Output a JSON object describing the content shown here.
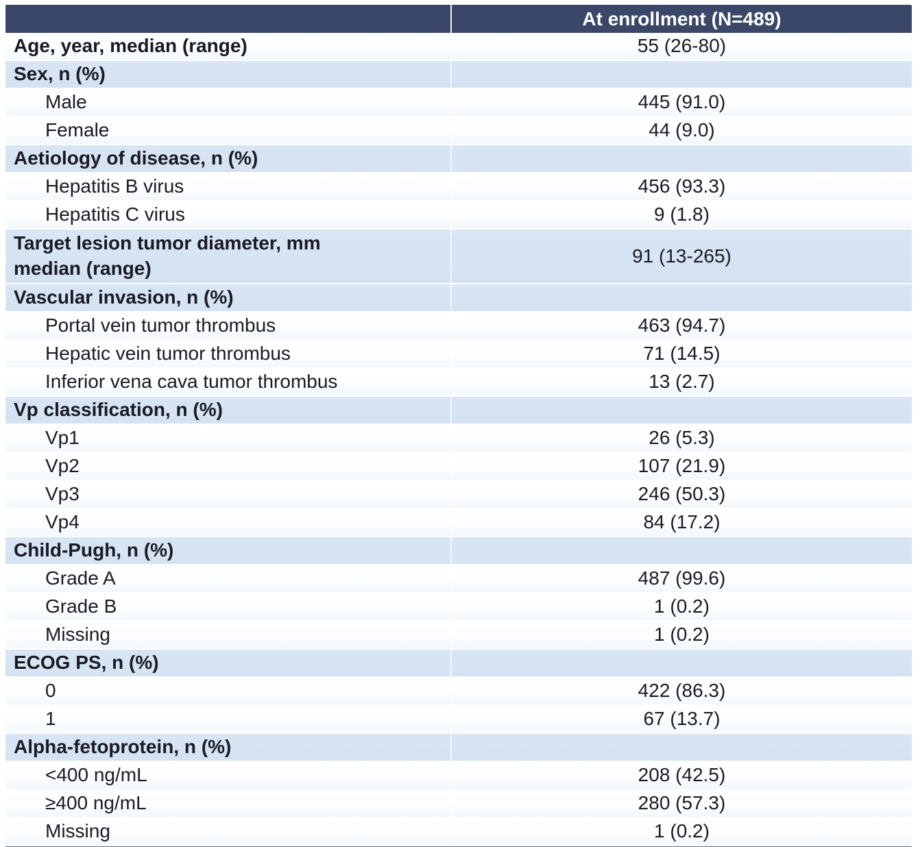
{
  "table": {
    "title_note": "Baseline characteristics table",
    "header": {
      "col1": "",
      "col2": "At enrollment (N=489)"
    },
    "colors": {
      "header_bg": "#3a4768",
      "header_text": "#ffffff",
      "band_blue": "#d7e5f4",
      "text": "#1a1a22",
      "bottom_line": "#666d7c"
    },
    "rows": [
      {
        "label": "Age, year, median (range)",
        "value": "55 (26-80)",
        "bold": true,
        "indent": false,
        "bg": "white",
        "tall": false
      },
      {
        "label": "Sex, n (%)",
        "value": "",
        "bold": true,
        "indent": false,
        "bg": "blue",
        "tall": false
      },
      {
        "label": "Male",
        "value": "445 (91.0)",
        "bold": false,
        "indent": true,
        "bg": "white",
        "tall": false
      },
      {
        "label": "Female",
        "value": "44 (9.0)",
        "bold": false,
        "indent": true,
        "bg": "white",
        "tall": false
      },
      {
        "label": "Aetiology of disease, n (%)",
        "value": "",
        "bold": true,
        "indent": false,
        "bg": "blue",
        "tall": false
      },
      {
        "label": "Hepatitis B virus",
        "value": "456 (93.3)",
        "bold": false,
        "indent": true,
        "bg": "white",
        "tall": false
      },
      {
        "label": "Hepatitis C virus",
        "value": "9 (1.8)",
        "bold": false,
        "indent": true,
        "bg": "white",
        "tall": false
      },
      {
        "label": "Target lesion tumor diameter, mm\nmedian (range)",
        "value": "91 (13-265)",
        "bold": true,
        "indent": false,
        "bg": "blue",
        "tall": true
      },
      {
        "label": "Vascular invasion, n (%)",
        "value": "",
        "bold": true,
        "indent": false,
        "bg": "blue",
        "tall": false
      },
      {
        "label": "Portal vein tumor thrombus",
        "value": "463 (94.7)",
        "bold": false,
        "indent": true,
        "bg": "white",
        "tall": false
      },
      {
        "label": "Hepatic vein tumor thrombus",
        "value": "71 (14.5)",
        "bold": false,
        "indent": true,
        "bg": "white",
        "tall": false
      },
      {
        "label": "Inferior vena cava tumor thrombus",
        "value": "13 (2.7)",
        "bold": false,
        "indent": true,
        "bg": "white",
        "tall": false
      },
      {
        "label": "Vp classification, n (%)",
        "value": "",
        "bold": true,
        "indent": false,
        "bg": "blue",
        "tall": false
      },
      {
        "label": "Vp1",
        "value": "26 (5.3)",
        "bold": false,
        "indent": true,
        "bg": "white",
        "tall": false
      },
      {
        "label": "Vp2",
        "value": "107 (21.9)",
        "bold": false,
        "indent": true,
        "bg": "white",
        "tall": false
      },
      {
        "label": "Vp3",
        "value": "246 (50.3)",
        "bold": false,
        "indent": true,
        "bg": "white",
        "tall": false
      },
      {
        "label": "Vp4",
        "value": "84 (17.2)",
        "bold": false,
        "indent": true,
        "bg": "white",
        "tall": false
      },
      {
        "label": "Child-Pugh, n (%)",
        "value": "",
        "bold": true,
        "indent": false,
        "bg": "blue",
        "tall": false
      },
      {
        "label": "Grade A",
        "value": "487 (99.6)",
        "bold": false,
        "indent": true,
        "bg": "white",
        "tall": false
      },
      {
        "label": "Grade B",
        "value": "1 (0.2)",
        "bold": false,
        "indent": true,
        "bg": "white",
        "tall": false
      },
      {
        "label": "Missing",
        "value": "1 (0.2)",
        "bold": false,
        "indent": true,
        "bg": "white",
        "tall": false
      },
      {
        "label": "ECOG PS, n (%)",
        "value": "",
        "bold": true,
        "indent": false,
        "bg": "blue",
        "tall": false
      },
      {
        "label": "0",
        "value": "422 (86.3)",
        "bold": false,
        "indent": true,
        "bg": "white",
        "tall": false
      },
      {
        "label": "1",
        "value": "67 (13.7)",
        "bold": false,
        "indent": true,
        "bg": "white",
        "tall": false
      },
      {
        "label": "Alpha-fetoprotein, n (%)",
        "value": "",
        "bold": true,
        "indent": false,
        "bg": "blue",
        "tall": false
      },
      {
        "label": "<400 ng/mL",
        "value": "208 (42.5)",
        "bold": false,
        "indent": true,
        "bg": "white",
        "tall": false
      },
      {
        "label": "≥400 ng/mL",
        "value": "280 (57.3)",
        "bold": false,
        "indent": true,
        "bg": "white",
        "tall": false
      },
      {
        "label": "Missing",
        "value": "1 (0.2)",
        "bold": false,
        "indent": true,
        "bg": "white",
        "tall": false
      }
    ]
  }
}
